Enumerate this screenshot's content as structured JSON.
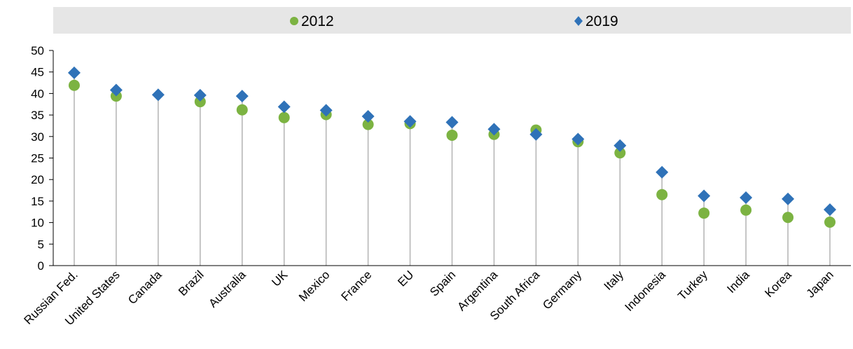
{
  "chart_data": {
    "type": "scatter",
    "title": "",
    "xlabel": "",
    "ylabel": "",
    "ylim": [
      0,
      50
    ],
    "yticks": [
      0,
      5,
      10,
      15,
      20,
      25,
      30,
      35,
      40,
      45,
      50
    ],
    "grid": false,
    "legend_position": "top",
    "categories": [
      "Russian Fed.",
      "United States",
      "Canada",
      "Brazil",
      "Australia",
      "UK",
      "Mexico",
      "France",
      "EU",
      "Spain",
      "Argentina",
      "South Africa",
      "Germany",
      "Italy",
      "Indonesia",
      "Turkey",
      "India",
      "Korea",
      "Japan"
    ],
    "series": [
      {
        "name": "2012",
        "marker": "circle",
        "color": "#7cb342",
        "values": [
          41.9,
          39.4,
          null,
          38.1,
          36.2,
          34.4,
          35.1,
          32.8,
          33.0,
          30.3,
          30.5,
          31.5,
          28.8,
          26.2,
          16.5,
          12.2,
          12.9,
          11.2,
          10.1
        ]
      },
      {
        "name": "2019",
        "marker": "diamond",
        "color": "#2f72b8",
        "values": [
          44.8,
          40.8,
          39.7,
          39.6,
          39.4,
          36.9,
          36.1,
          34.7,
          33.5,
          33.3,
          31.7,
          30.5,
          29.4,
          27.9,
          21.7,
          16.2,
          15.8,
          15.5,
          13.0
        ]
      }
    ]
  },
  "style": {
    "legend_band_color": "#e6e6e6",
    "axis_color": "#000000",
    "stem_color": "#b3b3b3"
  }
}
